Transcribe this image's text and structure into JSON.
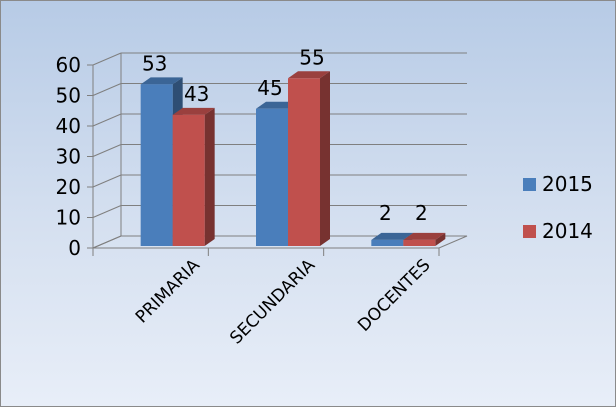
{
  "chart_data": {
    "type": "bar",
    "title": "",
    "xlabel": "",
    "ylabel": "",
    "categories": [
      "PRIMARIA",
      "SECUNDARIA",
      "DOCENTES"
    ],
    "series": [
      {
        "name": "2015",
        "values": [
          53,
          45,
          2
        ],
        "color": "#4a7ebb"
      },
      {
        "name": "2014",
        "values": [
          43,
          55,
          2
        ],
        "color": "#c0504d"
      }
    ],
    "ylim": [
      0,
      60
    ],
    "yticks": [
      "0",
      "10",
      "20",
      "30",
      "40",
      "50",
      "60"
    ],
    "grid": true,
    "legend_position": "right",
    "style": "3d-clustered-column"
  }
}
